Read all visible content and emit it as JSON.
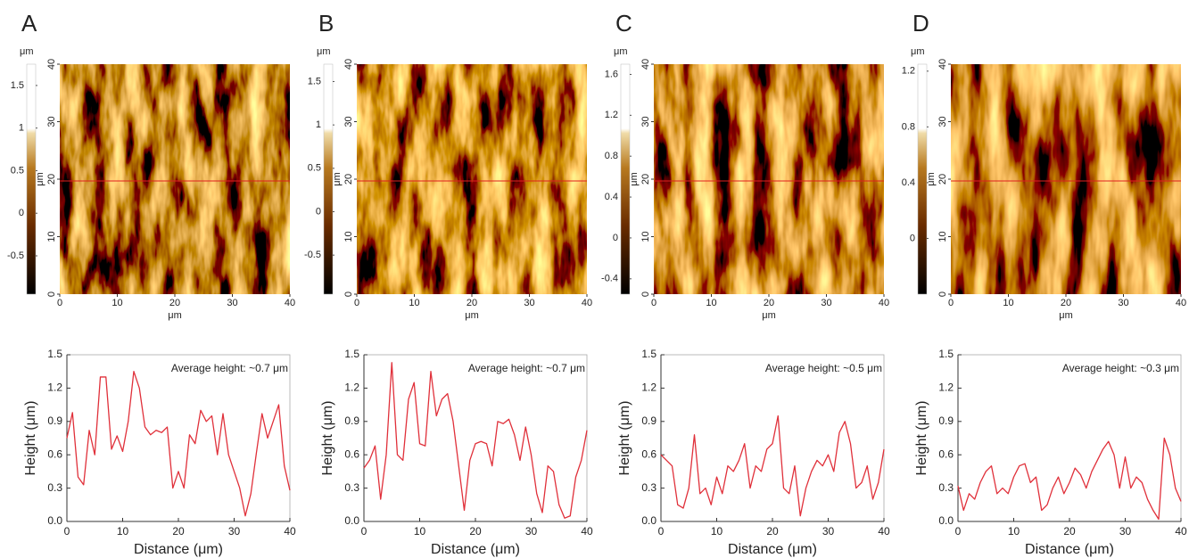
{
  "panel_labels": [
    "A",
    "B",
    "C",
    "D"
  ],
  "afm_images": [
    {
      "colorbar_unit": "μm",
      "colorbar_lim": [
        -0.95,
        1.75
      ],
      "colorbar_ticks": [
        -0.5,
        0,
        0.5,
        1,
        1.5
      ],
      "xticks": [
        0,
        10,
        20,
        30,
        40
      ],
      "yticks": [
        0,
        10,
        20,
        30,
        40
      ],
      "xlabel": "μm",
      "ylabel": "μm"
    },
    {
      "colorbar_unit": "μm",
      "colorbar_lim": [
        -0.95,
        1.7
      ],
      "colorbar_ticks": [
        -0.5,
        0,
        0.5,
        1,
        1.5
      ],
      "xticks": [
        0,
        10,
        20,
        30,
        40
      ],
      "yticks": [
        0,
        10,
        20,
        30,
        40
      ],
      "xlabel": "μm",
      "ylabel": "μm"
    },
    {
      "colorbar_unit": "μm",
      "colorbar_lim": [
        -0.55,
        1.7
      ],
      "colorbar_ticks": [
        -0.4,
        0,
        0.4,
        0.8,
        1.2,
        1.6
      ],
      "xticks": [
        0,
        10,
        20,
        30,
        40
      ],
      "yticks": [
        0,
        10,
        20,
        30,
        40
      ],
      "xlabel": "μm",
      "ylabel": "μm"
    },
    {
      "colorbar_unit": "μm",
      "colorbar_lim": [
        -0.4,
        1.25
      ],
      "colorbar_ticks": [
        0,
        0.4,
        0.8,
        1.2
      ],
      "xticks": [
        0,
        10,
        20,
        30,
        40
      ],
      "yticks": [
        0,
        10,
        20,
        30,
        40
      ],
      "xlabel": "μm",
      "ylabel": "μm"
    }
  ],
  "chart_data": [
    {
      "type": "line",
      "annotation": "Average height: ~0.7 μm",
      "xlabel": "Distance (μm)",
      "ylabel": "Height (μm)",
      "color": "#e0303a",
      "x": [
        0,
        1,
        2,
        3,
        4,
        5,
        6,
        7,
        8,
        9,
        10,
        11,
        12,
        13,
        14,
        15,
        16,
        17,
        18,
        19,
        20,
        21,
        22,
        23,
        24,
        25,
        26,
        27,
        28,
        29,
        30,
        31,
        32,
        33,
        34,
        35,
        36,
        37,
        38,
        39,
        40
      ],
      "values": [
        0.75,
        0.98,
        0.4,
        0.33,
        0.82,
        0.6,
        1.3,
        1.3,
        0.65,
        0.77,
        0.63,
        0.9,
        1.35,
        1.2,
        0.85,
        0.78,
        0.82,
        0.8,
        0.85,
        0.3,
        0.45,
        0.3,
        0.78,
        0.7,
        1.0,
        0.9,
        0.95,
        0.6,
        0.97,
        0.6,
        0.45,
        0.3,
        0.05,
        0.25,
        0.62,
        0.97,
        0.75,
        0.9,
        1.05,
        0.5,
        0.28
      ],
      "xlim": [
        0,
        40
      ],
      "ylim": [
        0,
        1.5
      ],
      "xticks": [
        0,
        10,
        20,
        30,
        40
      ],
      "yticks": [
        {
          "value": 0,
          "label": "0.0"
        },
        0.3,
        0.6,
        0.9,
        1.2,
        1.5
      ]
    },
    {
      "type": "line",
      "annotation": "Average height: ~0.7 μm",
      "xlabel": "Distance (μm)",
      "ylabel": "Height (μm)",
      "color": "#e0303a",
      "x": [
        0,
        1,
        2,
        3,
        4,
        5,
        6,
        7,
        8,
        9,
        10,
        11,
        12,
        13,
        14,
        15,
        16,
        17,
        18,
        19,
        20,
        21,
        22,
        23,
        24,
        25,
        26,
        27,
        28,
        29,
        30,
        31,
        32,
        33,
        34,
        35,
        36,
        37,
        38,
        39,
        40
      ],
      "values": [
        0.48,
        0.55,
        0.68,
        0.2,
        0.6,
        1.43,
        0.6,
        0.55,
        1.1,
        1.25,
        0.7,
        0.68,
        1.35,
        0.95,
        1.1,
        1.15,
        0.9,
        0.5,
        0.1,
        0.55,
        0.7,
        0.72,
        0.7,
        0.5,
        0.9,
        0.88,
        0.92,
        0.78,
        0.55,
        0.85,
        0.6,
        0.25,
        0.08,
        0.5,
        0.45,
        0.15,
        0.03,
        0.05,
        0.4,
        0.55,
        0.82
      ],
      "xlim": [
        0,
        40
      ],
      "ylim": [
        0,
        1.5
      ],
      "xticks": [
        0,
        10,
        20,
        30,
        40
      ],
      "yticks": [
        {
          "value": 0,
          "label": "0.0"
        },
        0.3,
        0.6,
        0.9,
        1.2,
        1.5
      ]
    },
    {
      "type": "line",
      "annotation": "Average height: ~0.5 μm",
      "xlabel": "Distance (μm)",
      "ylabel": "Height (μm)",
      "color": "#e0303a",
      "x": [
        0,
        1,
        2,
        3,
        4,
        5,
        6,
        7,
        8,
        9,
        10,
        11,
        12,
        13,
        14,
        15,
        16,
        17,
        18,
        19,
        20,
        21,
        22,
        23,
        24,
        25,
        26,
        27,
        28,
        29,
        30,
        31,
        32,
        33,
        34,
        35,
        36,
        37,
        38,
        39,
        40
      ],
      "values": [
        0.6,
        0.55,
        0.5,
        0.15,
        0.12,
        0.3,
        0.78,
        0.25,
        0.3,
        0.15,
        0.4,
        0.25,
        0.5,
        0.45,
        0.55,
        0.7,
        0.3,
        0.5,
        0.45,
        0.65,
        0.7,
        0.95,
        0.3,
        0.25,
        0.5,
        0.05,
        0.3,
        0.45,
        0.55,
        0.5,
        0.6,
        0.45,
        0.8,
        0.9,
        0.7,
        0.3,
        0.35,
        0.5,
        0.2,
        0.35,
        0.65
      ],
      "xlim": [
        0,
        40
      ],
      "ylim": [
        0,
        1.5
      ],
      "xticks": [
        0,
        10,
        20,
        30,
        40
      ],
      "yticks": [
        {
          "value": 0,
          "label": "0.0"
        },
        0.3,
        0.6,
        0.9,
        1.2,
        1.5
      ]
    },
    {
      "type": "line",
      "annotation": "Average height: ~0.3 μm",
      "xlabel": "Distance (μm)",
      "ylabel": "Height (μm)",
      "color": "#e0303a",
      "x": [
        0,
        1,
        2,
        3,
        4,
        5,
        6,
        7,
        8,
        9,
        10,
        11,
        12,
        13,
        14,
        15,
        16,
        17,
        18,
        19,
        20,
        21,
        22,
        23,
        24,
        25,
        26,
        27,
        28,
        29,
        30,
        31,
        32,
        33,
        34,
        35,
        36,
        37,
        38,
        39,
        40
      ],
      "values": [
        0.32,
        0.1,
        0.25,
        0.2,
        0.35,
        0.45,
        0.5,
        0.25,
        0.3,
        0.25,
        0.4,
        0.5,
        0.52,
        0.35,
        0.4,
        0.1,
        0.15,
        0.3,
        0.4,
        0.25,
        0.35,
        0.48,
        0.42,
        0.3,
        0.45,
        0.55,
        0.65,
        0.72,
        0.6,
        0.3,
        0.58,
        0.3,
        0.4,
        0.35,
        0.2,
        0.1,
        0.02,
        0.75,
        0.6,
        0.3,
        0.18
      ],
      "xlim": [
        0,
        40
      ],
      "ylim": [
        0,
        1.5
      ],
      "xticks": [
        0,
        10,
        20,
        30,
        40
      ],
      "yticks": [
        {
          "value": 0,
          "label": "0.0"
        },
        0.3,
        0.6,
        0.9,
        1.2,
        1.5
      ]
    }
  ]
}
